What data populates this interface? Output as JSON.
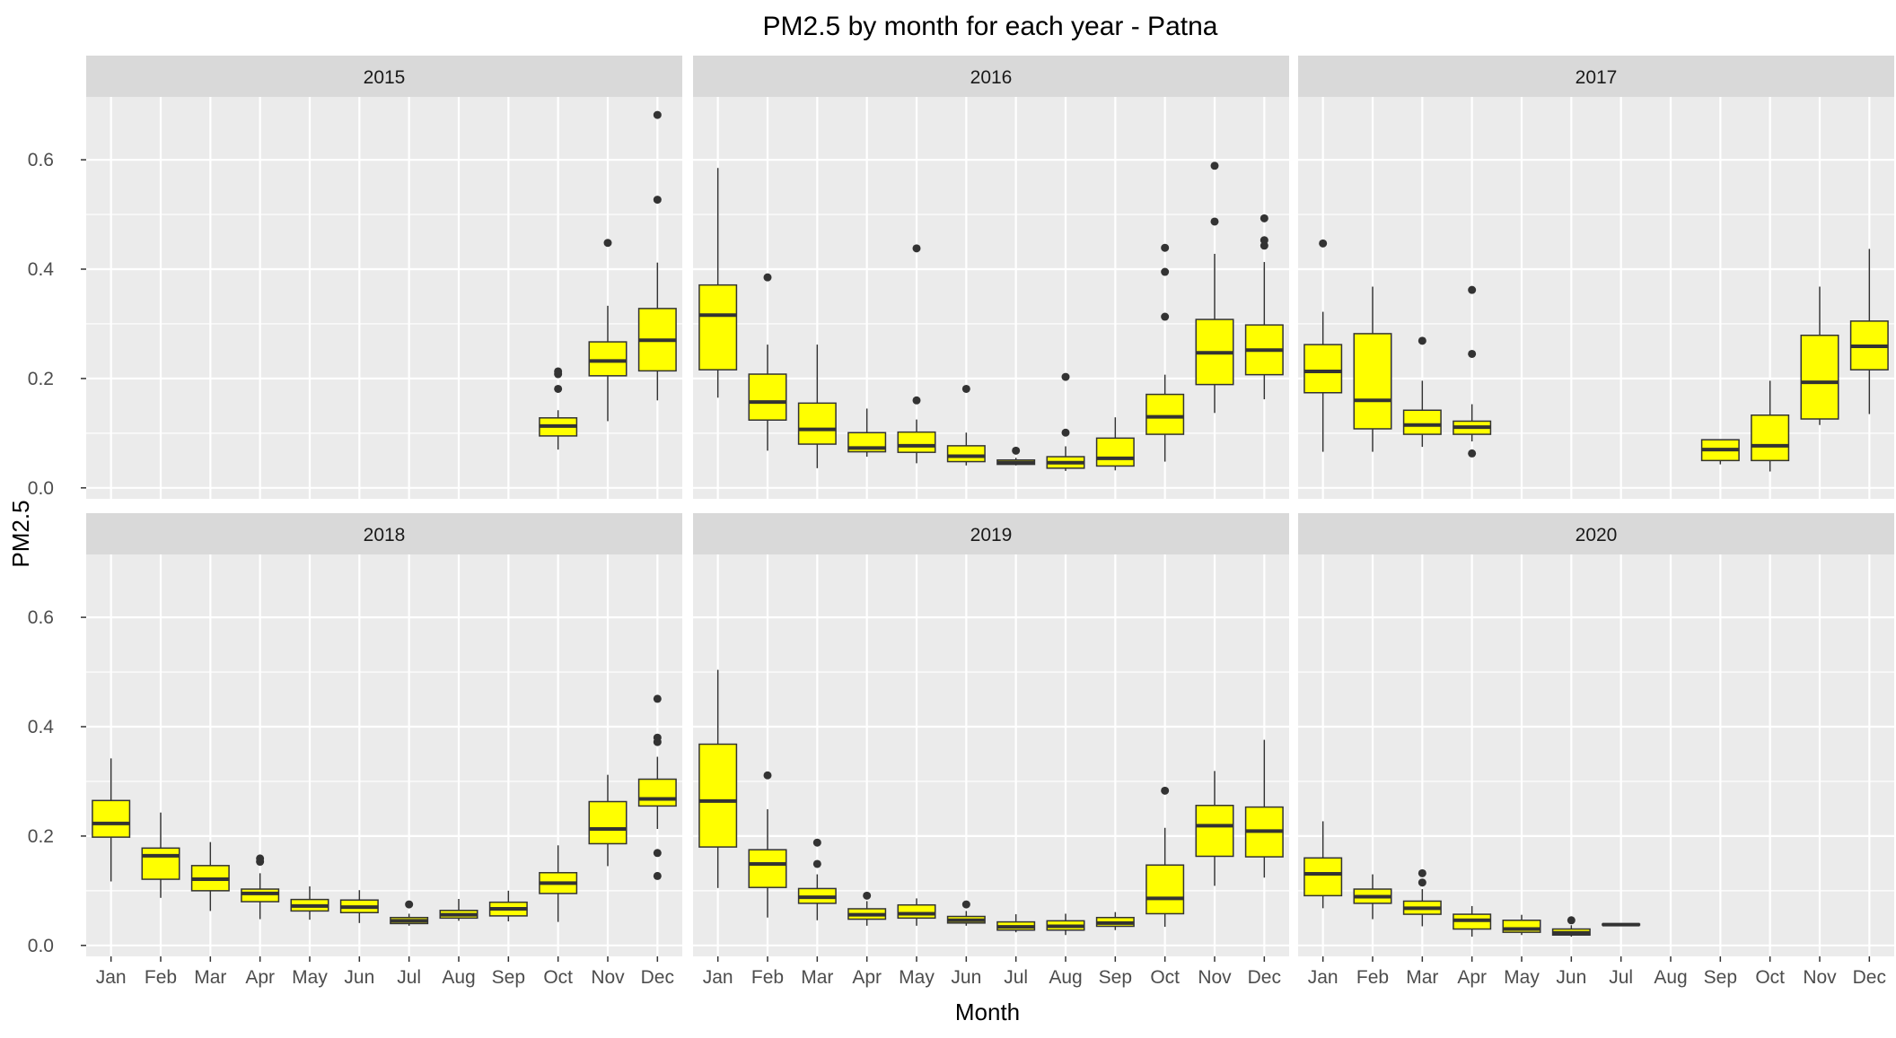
{
  "chart_data": {
    "type": "boxplot",
    "title": "PM2.5 by month for each year - Patna",
    "xlabel": "Month",
    "ylabel": "PM2.5",
    "categories": [
      "Jan",
      "Feb",
      "Mar",
      "Apr",
      "May",
      "Jun",
      "Jul",
      "Aug",
      "Sep",
      "Oct",
      "Nov",
      "Dec"
    ],
    "y_ticks": [
      0.0,
      0.2,
      0.4,
      0.6
    ],
    "y_tick_labels": [
      "0.0",
      "0.2",
      "0.4",
      "0.6"
    ],
    "ylim": [
      -0.02,
      0.715
    ],
    "grid": true,
    "facet_layout": "3 columns x 2 rows",
    "box_fill": "#ffff00",
    "box_stroke": "#333333",
    "panel_background": "#ebebeb",
    "strip_background": "#d9d9d9",
    "grid_color": "#ffffff",
    "panels": [
      {
        "label": "2015",
        "boxes": [
          {
            "month": "Oct",
            "low": 0.07,
            "q1": 0.095,
            "median": 0.113,
            "q3": 0.128,
            "high": 0.142,
            "outliers": [
              0.181,
              0.208,
              0.213
            ]
          },
          {
            "month": "Nov",
            "low": 0.122,
            "q1": 0.205,
            "median": 0.232,
            "q3": 0.267,
            "high": 0.333,
            "outliers": [
              0.448
            ]
          },
          {
            "month": "Dec",
            "low": 0.16,
            "q1": 0.214,
            "median": 0.27,
            "q3": 0.328,
            "high": 0.412,
            "outliers": [
              0.527,
              0.682
            ]
          }
        ]
      },
      {
        "label": "2016",
        "boxes": [
          {
            "month": "Jan",
            "low": 0.165,
            "q1": 0.216,
            "median": 0.316,
            "q3": 0.371,
            "high": 0.585,
            "outliers": []
          },
          {
            "month": "Feb",
            "low": 0.068,
            "q1": 0.124,
            "median": 0.157,
            "q3": 0.208,
            "high": 0.262,
            "outliers": [
              0.385
            ]
          },
          {
            "month": "Mar",
            "low": 0.036,
            "q1": 0.08,
            "median": 0.107,
            "q3": 0.155,
            "high": 0.262,
            "outliers": []
          },
          {
            "month": "Apr",
            "low": 0.057,
            "q1": 0.066,
            "median": 0.073,
            "q3": 0.101,
            "high": 0.145,
            "outliers": []
          },
          {
            "month": "May",
            "low": 0.045,
            "q1": 0.065,
            "median": 0.077,
            "q3": 0.102,
            "high": 0.125,
            "outliers": [
              0.16,
              0.438
            ]
          },
          {
            "month": "Jun",
            "low": 0.041,
            "q1": 0.048,
            "median": 0.058,
            "q3": 0.077,
            "high": 0.101,
            "outliers": [
              0.181
            ]
          },
          {
            "month": "Jul",
            "low": 0.041,
            "q1": 0.043,
            "median": 0.046,
            "q3": 0.051,
            "high": 0.055,
            "outliers": [
              0.068
            ]
          },
          {
            "month": "Aug",
            "low": 0.031,
            "q1": 0.036,
            "median": 0.046,
            "q3": 0.057,
            "high": 0.076,
            "outliers": [
              0.101,
              0.203
            ]
          },
          {
            "month": "Sep",
            "low": 0.032,
            "q1": 0.04,
            "median": 0.054,
            "q3": 0.091,
            "high": 0.129,
            "outliers": []
          },
          {
            "month": "Oct",
            "low": 0.048,
            "q1": 0.098,
            "median": 0.13,
            "q3": 0.171,
            "high": 0.207,
            "outliers": [
              0.313,
              0.395,
              0.439
            ]
          },
          {
            "month": "Nov",
            "low": 0.137,
            "q1": 0.189,
            "median": 0.247,
            "q3": 0.308,
            "high": 0.428,
            "outliers": [
              0.487,
              0.589
            ]
          },
          {
            "month": "Dec",
            "low": 0.162,
            "q1": 0.207,
            "median": 0.252,
            "q3": 0.298,
            "high": 0.413,
            "outliers": [
              0.443,
              0.453,
              0.493
            ]
          }
        ]
      },
      {
        "label": "2017",
        "boxes": [
          {
            "month": "Jan",
            "low": 0.066,
            "q1": 0.174,
            "median": 0.213,
            "q3": 0.262,
            "high": 0.322,
            "outliers": [
              0.447
            ]
          },
          {
            "month": "Feb",
            "low": 0.066,
            "q1": 0.108,
            "median": 0.16,
            "q3": 0.282,
            "high": 0.368,
            "outliers": []
          },
          {
            "month": "Mar",
            "low": 0.075,
            "q1": 0.098,
            "median": 0.115,
            "q3": 0.142,
            "high": 0.196,
            "outliers": [
              0.269
            ]
          },
          {
            "month": "Apr",
            "low": 0.085,
            "q1": 0.098,
            "median": 0.111,
            "q3": 0.122,
            "high": 0.153,
            "outliers": [
              0.063,
              0.245,
              0.362
            ]
          },
          {
            "month": "Sep",
            "low": 0.043,
            "q1": 0.05,
            "median": 0.07,
            "q3": 0.088,
            "high": 0.089,
            "outliers": []
          },
          {
            "month": "Oct",
            "low": 0.03,
            "q1": 0.05,
            "median": 0.077,
            "q3": 0.133,
            "high": 0.196,
            "outliers": []
          },
          {
            "month": "Nov",
            "low": 0.115,
            "q1": 0.126,
            "median": 0.193,
            "q3": 0.279,
            "high": 0.368,
            "outliers": []
          },
          {
            "month": "Dec",
            "low": 0.135,
            "q1": 0.216,
            "median": 0.259,
            "q3": 0.305,
            "high": 0.437,
            "outliers": []
          }
        ]
      },
      {
        "label": "2018",
        "boxes": [
          {
            "month": "Jan",
            "low": 0.117,
            "q1": 0.198,
            "median": 0.223,
            "q3": 0.265,
            "high": 0.342,
            "outliers": []
          },
          {
            "month": "Feb",
            "low": 0.087,
            "q1": 0.121,
            "median": 0.164,
            "q3": 0.178,
            "high": 0.243,
            "outliers": []
          },
          {
            "month": "Mar",
            "low": 0.063,
            "q1": 0.1,
            "median": 0.121,
            "q3": 0.146,
            "high": 0.189,
            "outliers": []
          },
          {
            "month": "Apr",
            "low": 0.048,
            "q1": 0.08,
            "median": 0.095,
            "q3": 0.103,
            "high": 0.132,
            "outliers": [
              0.153,
              0.159
            ]
          },
          {
            "month": "May",
            "low": 0.047,
            "q1": 0.063,
            "median": 0.072,
            "q3": 0.084,
            "high": 0.108,
            "outliers": []
          },
          {
            "month": "Jun",
            "low": 0.041,
            "q1": 0.06,
            "median": 0.07,
            "q3": 0.083,
            "high": 0.101,
            "outliers": []
          },
          {
            "month": "Jul",
            "low": 0.036,
            "q1": 0.04,
            "median": 0.045,
            "q3": 0.051,
            "high": 0.058,
            "outliers": [
              0.075
            ]
          },
          {
            "month": "Aug",
            "low": 0.045,
            "q1": 0.05,
            "median": 0.056,
            "q3": 0.064,
            "high": 0.085,
            "outliers": []
          },
          {
            "month": "Sep",
            "low": 0.044,
            "q1": 0.054,
            "median": 0.067,
            "q3": 0.079,
            "high": 0.1,
            "outliers": []
          },
          {
            "month": "Oct",
            "low": 0.043,
            "q1": 0.095,
            "median": 0.114,
            "q3": 0.133,
            "high": 0.183,
            "outliers": []
          },
          {
            "month": "Nov",
            "low": 0.145,
            "q1": 0.186,
            "median": 0.213,
            "q3": 0.263,
            "high": 0.312,
            "outliers": []
          },
          {
            "month": "Dec",
            "low": 0.213,
            "q1": 0.255,
            "median": 0.268,
            "q3": 0.304,
            "high": 0.345,
            "outliers": [
              0.127,
              0.169,
              0.372,
              0.38,
              0.451
            ]
          }
        ]
      },
      {
        "label": "2019",
        "boxes": [
          {
            "month": "Jan",
            "low": 0.105,
            "q1": 0.18,
            "median": 0.264,
            "q3": 0.368,
            "high": 0.504,
            "outliers": []
          },
          {
            "month": "Feb",
            "low": 0.051,
            "q1": 0.106,
            "median": 0.149,
            "q3": 0.175,
            "high": 0.249,
            "outliers": [
              0.311
            ]
          },
          {
            "month": "Mar",
            "low": 0.046,
            "q1": 0.077,
            "median": 0.088,
            "q3": 0.104,
            "high": 0.13,
            "outliers": [
              0.149,
              0.188
            ]
          },
          {
            "month": "Apr",
            "low": 0.036,
            "q1": 0.048,
            "median": 0.056,
            "q3": 0.067,
            "high": 0.081,
            "outliers": [
              0.091
            ]
          },
          {
            "month": "May",
            "low": 0.036,
            "q1": 0.05,
            "median": 0.058,
            "q3": 0.074,
            "high": 0.086,
            "outliers": []
          },
          {
            "month": "Jun",
            "low": 0.036,
            "q1": 0.041,
            "median": 0.046,
            "q3": 0.053,
            "high": 0.063,
            "outliers": [
              0.075
            ]
          },
          {
            "month": "Jul",
            "low": 0.024,
            "q1": 0.028,
            "median": 0.034,
            "q3": 0.043,
            "high": 0.057,
            "outliers": []
          },
          {
            "month": "Aug",
            "low": 0.019,
            "q1": 0.028,
            "median": 0.035,
            "q3": 0.045,
            "high": 0.058,
            "outliers": []
          },
          {
            "month": "Sep",
            "low": 0.028,
            "q1": 0.035,
            "median": 0.041,
            "q3": 0.051,
            "high": 0.061,
            "outliers": []
          },
          {
            "month": "Oct",
            "low": 0.034,
            "q1": 0.058,
            "median": 0.086,
            "q3": 0.147,
            "high": 0.215,
            "outliers": [
              0.283
            ]
          },
          {
            "month": "Nov",
            "low": 0.109,
            "q1": 0.163,
            "median": 0.219,
            "q3": 0.256,
            "high": 0.319,
            "outliers": []
          },
          {
            "month": "Dec",
            "low": 0.124,
            "q1": 0.162,
            "median": 0.209,
            "q3": 0.253,
            "high": 0.376,
            "outliers": []
          }
        ]
      },
      {
        "label": "2020",
        "boxes": [
          {
            "month": "Jan",
            "low": 0.068,
            "q1": 0.091,
            "median": 0.131,
            "q3": 0.16,
            "high": 0.227,
            "outliers": []
          },
          {
            "month": "Feb",
            "low": 0.048,
            "q1": 0.077,
            "median": 0.089,
            "q3": 0.103,
            "high": 0.13,
            "outliers": []
          },
          {
            "month": "Mar",
            "low": 0.035,
            "q1": 0.057,
            "median": 0.068,
            "q3": 0.081,
            "high": 0.103,
            "outliers": [
              0.115,
              0.132
            ]
          },
          {
            "month": "Apr",
            "low": 0.016,
            "q1": 0.03,
            "median": 0.046,
            "q3": 0.057,
            "high": 0.072,
            "outliers": []
          },
          {
            "month": "May",
            "low": 0.019,
            "q1": 0.024,
            "median": 0.03,
            "q3": 0.046,
            "high": 0.056,
            "outliers": []
          },
          {
            "month": "Jun",
            "low": 0.016,
            "q1": 0.019,
            "median": 0.023,
            "q3": 0.03,
            "high": 0.037,
            "outliers": [
              0.046
            ]
          },
          {
            "month": "Jul",
            "low": 0.038,
            "q1": 0.038,
            "median": 0.038,
            "q3": 0.039,
            "high": 0.039,
            "outliers": []
          }
        ]
      }
    ]
  }
}
